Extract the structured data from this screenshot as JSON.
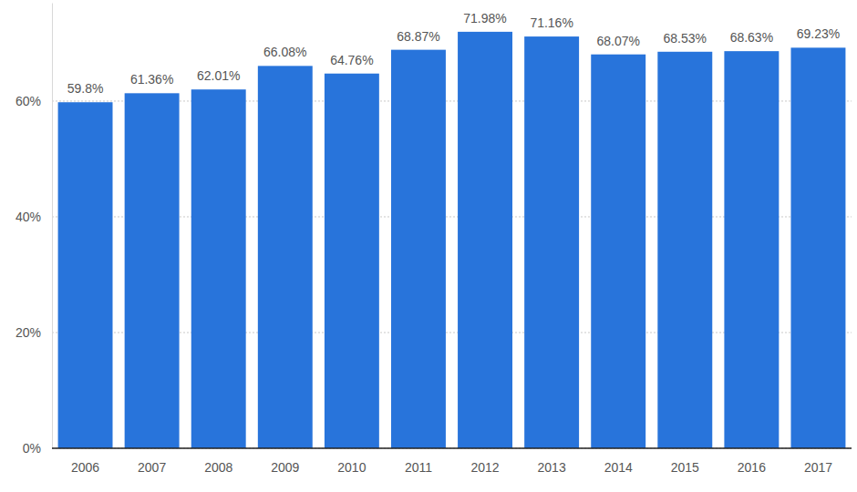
{
  "chart_data": {
    "type": "bar",
    "categories": [
      "2006",
      "2007",
      "2008",
      "2009",
      "2010",
      "2011",
      "2012",
      "2013",
      "2014",
      "2015",
      "2016",
      "2017"
    ],
    "values": [
      59.8,
      61.36,
      62.01,
      66.08,
      64.76,
      68.87,
      71.98,
      71.16,
      68.07,
      68.53,
      68.63,
      69.23
    ],
    "value_labels": [
      "59.8%",
      "61.36%",
      "62.01%",
      "66.08%",
      "64.76%",
      "68.87%",
      "71.98%",
      "71.16%",
      "68.07%",
      "68.53%",
      "68.63%",
      "69.23%"
    ],
    "color": "#2874db",
    "ylim": [
      0,
      77
    ],
    "yticks": [
      {
        "value": 0,
        "label": "0%"
      },
      {
        "value": 20,
        "label": "20%"
      },
      {
        "value": 40,
        "label": "40%"
      },
      {
        "value": 60,
        "label": "60%"
      }
    ],
    "grid": true,
    "data_labels": true
  }
}
